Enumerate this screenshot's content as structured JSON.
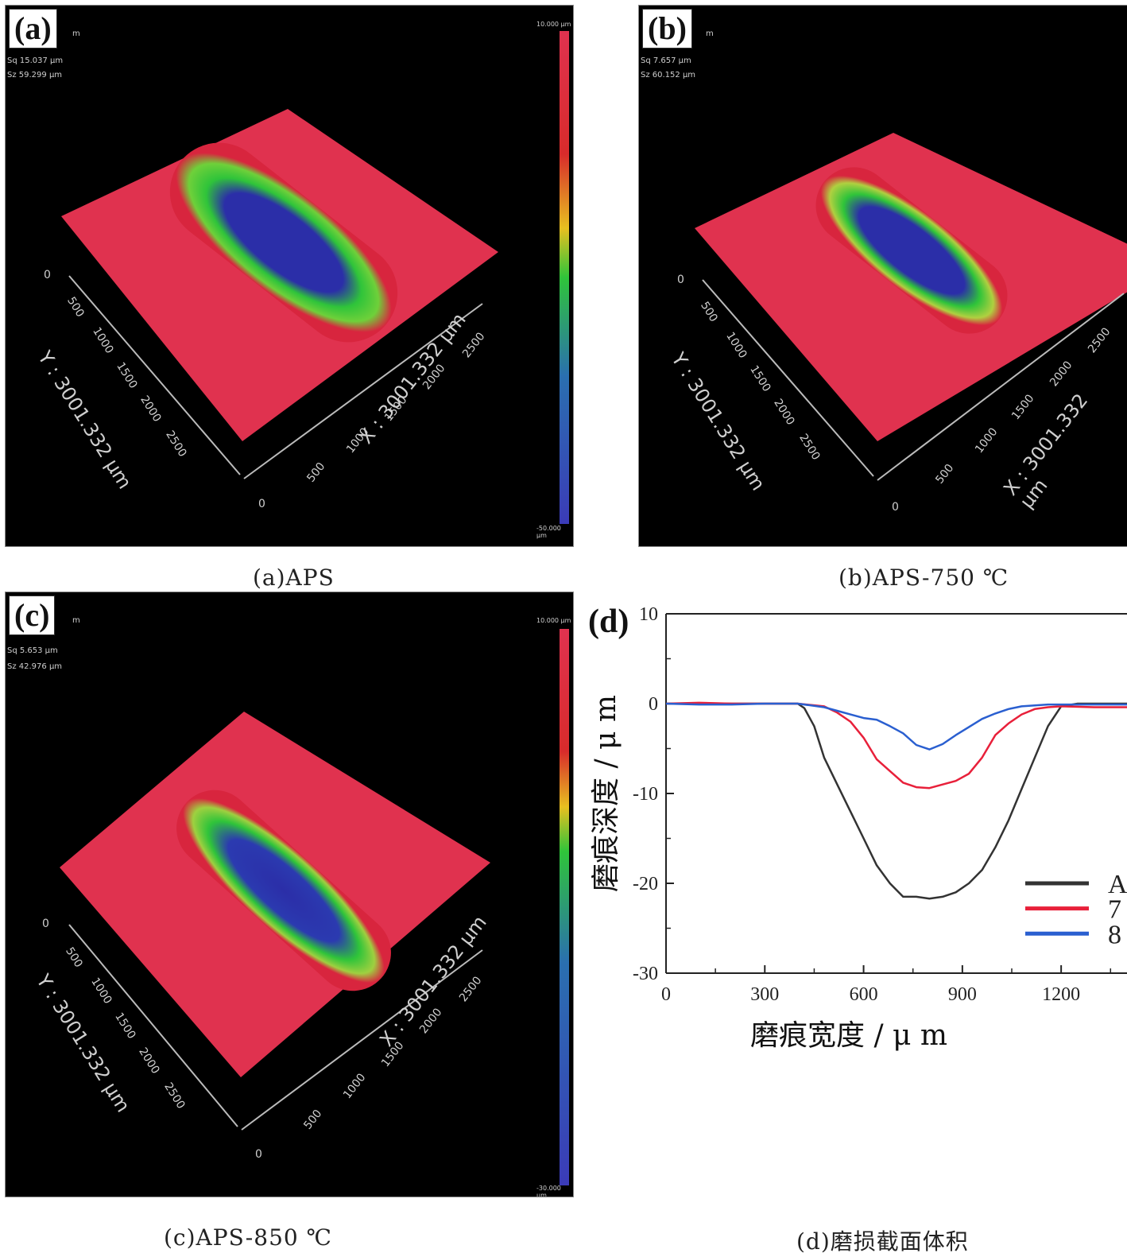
{
  "panels": [
    {
      "letter": "(a)",
      "caption": "(a)APS",
      "hud": [
        "m",
        "Sq 15.037 μm",
        "Sz 59.299 μm"
      ],
      "x_axis_label": "X : 3001.332 μm",
      "y_axis_label": "Y : 3001.332 μm",
      "x_ticks": [
        "0",
        "500",
        "1000",
        "1500",
        "2000",
        "2500"
      ],
      "y_ticks": [
        "0",
        "500",
        "1000",
        "1500",
        "2000",
        "2500"
      ],
      "colorbar_top": "10.000 μm",
      "colorbar_bottom": "-50.000 μm"
    },
    {
      "letter": "(b)",
      "caption": "(b)APS-750 ℃",
      "hud": [
        "m",
        "Sq 7.657 μm",
        "Sz 60.152 μm"
      ],
      "x_axis_label": "X : 3001.332 μm",
      "y_axis_label": "Y : 3001.332 μm",
      "x_ticks": [
        "0",
        "500",
        "1000",
        "1500",
        "2000",
        "2500"
      ],
      "y_ticks": [
        "0",
        "500",
        "1000",
        "1500",
        "2000",
        "2500"
      ]
    },
    {
      "letter": "(c)",
      "caption": "(c)APS-850 ℃",
      "hud": [
        "m",
        "Sq 5.653 μm",
        "Sz 42.976 μm"
      ],
      "x_axis_label": "X : 3001.332 μm",
      "y_axis_label": "Y : 3001.332 μm",
      "x_ticks": [
        "0",
        "500",
        "1000",
        "1500",
        "2000",
        "2500"
      ],
      "y_ticks": [
        "0",
        "500",
        "1000",
        "1500",
        "2000",
        "2500"
      ],
      "colorbar_top": "10.000 μm",
      "colorbar_bottom": "-30.000 μm"
    }
  ],
  "chart_panel": {
    "letter": "(d)",
    "caption": "(d)磨损截面体积"
  },
  "colors": {
    "surface": "#e0324f",
    "track_mid": "#2fc43a",
    "track_deep": "#2b2ea8",
    "APS": "#333333",
    "750": "#e8203a",
    "850": "#2a5fd0"
  },
  "chart_data": {
    "type": "line",
    "xlabel": "磨痕宽度 / μ m",
    "ylabel": "磨痕深度 / μ m",
    "xlim": [
      0,
      1400
    ],
    "ylim": [
      -30,
      10
    ],
    "x_ticks": [
      0,
      300,
      600,
      900,
      1200
    ],
    "y_ticks": [
      10,
      0,
      -10,
      -20,
      -30
    ],
    "legend_position": "bottom-right",
    "legend_visible_text": [
      "A",
      "7",
      "8"
    ],
    "series": [
      {
        "color_key": "APS",
        "x": [
          0,
          100,
          200,
          300,
          400,
          420,
          450,
          480,
          520,
          560,
          600,
          640,
          680,
          720,
          760,
          800,
          840,
          880,
          920,
          960,
          1000,
          1040,
          1080,
          1120,
          1160,
          1200,
          1250,
          1300,
          1400
        ],
        "y": [
          0,
          0,
          0,
          0,
          0,
          -0.5,
          -2.5,
          -6,
          -9,
          -12,
          -15,
          -18,
          -20,
          -21.5,
          -21.5,
          -21.7,
          -21.5,
          -21,
          -20,
          -18.5,
          -16,
          -13,
          -9.5,
          -6,
          -2.5,
          -0.3,
          0,
          0,
          0
        ]
      },
      {
        "color_key": "750",
        "x": [
          0,
          100,
          200,
          300,
          400,
          480,
          520,
          560,
          600,
          640,
          680,
          720,
          760,
          800,
          840,
          880,
          920,
          960,
          1000,
          1040,
          1080,
          1120,
          1160,
          1200,
          1300,
          1400
        ],
        "y": [
          0,
          0.1,
          0,
          0,
          0,
          -0.3,
          -1,
          -2,
          -3.8,
          -6.2,
          -7.5,
          -8.8,
          -9.3,
          -9.4,
          -9,
          -8.6,
          -7.8,
          -6,
          -3.5,
          -2.2,
          -1.2,
          -0.6,
          -0.4,
          -0.3,
          -0.4,
          -0.4
        ]
      },
      {
        "color_key": "850",
        "x": [
          0,
          100,
          200,
          300,
          400,
          480,
          520,
          560,
          600,
          640,
          680,
          720,
          760,
          800,
          840,
          880,
          920,
          960,
          1000,
          1040,
          1080,
          1120,
          1160,
          1200,
          1300,
          1400
        ],
        "y": [
          0,
          -0.1,
          -0.1,
          0,
          0,
          -0.4,
          -0.8,
          -1.2,
          -1.6,
          -1.8,
          -2.5,
          -3.3,
          -4.6,
          -5.1,
          -4.5,
          -3.5,
          -2.6,
          -1.7,
          -1.1,
          -0.6,
          -0.3,
          -0.2,
          -0.1,
          -0.1,
          -0.1,
          -0.1
        ]
      }
    ]
  }
}
